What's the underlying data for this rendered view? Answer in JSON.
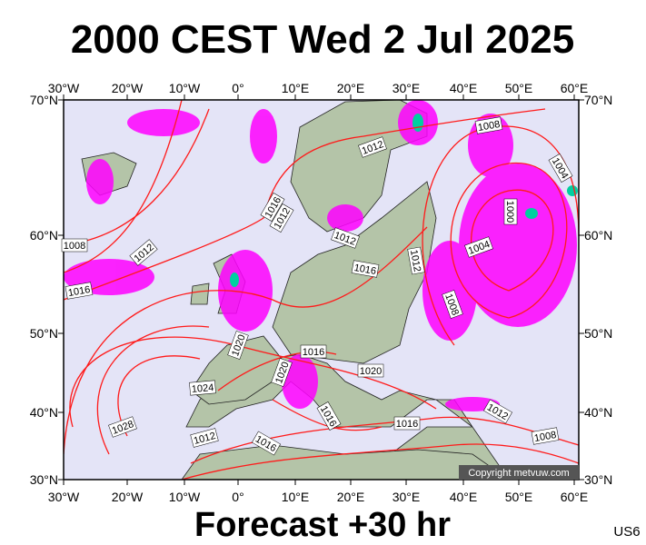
{
  "title": "2000 CEST Wed 2 Jul 2025",
  "footer": "Forecast +30 hr",
  "model": "US6",
  "copyright": "Copyright metvuw.com",
  "longitudes": [
    "30°W",
    "20°W",
    "10°W",
    "0°",
    "10°E",
    "20°E",
    "30°E",
    "40°E",
    "50°E",
    "60°E"
  ],
  "latitudes": [
    "70°N",
    "60°N",
    "50°N",
    "40°N",
    "30°N"
  ],
  "isobars": [
    1008,
    1012,
    1004,
    1000,
    1016,
    1012,
    1012,
    1012,
    1004,
    1016,
    1012,
    1008,
    1016,
    1008,
    1020,
    1016,
    1020,
    1020,
    1024,
    1016,
    1016,
    1012,
    1028,
    1012,
    1016,
    1008
  ]
}
